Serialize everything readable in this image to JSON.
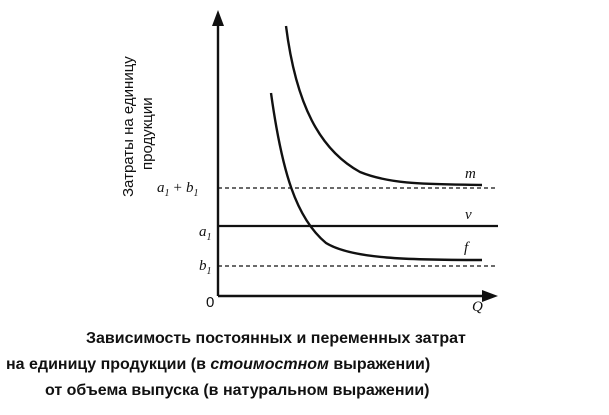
{
  "axes": {
    "y_label_line1": "Затраты на единицу",
    "y_label_line2": "продукции",
    "x_label": "Q",
    "origin_label": "0"
  },
  "levels": {
    "sum_label": "a1 + b1",
    "sum_label_a": "a",
    "sum_label_sub1": "1",
    "sum_label_plus": "+",
    "sum_label_b": "b",
    "sum_label_sub2": "1",
    "a_label": "a",
    "a_sub": "1",
    "b_label": "b",
    "b_sub": "1"
  },
  "curves": {
    "m_label": "m",
    "v_label": "v",
    "f_label": "f"
  },
  "caption": {
    "line1": "Зависимость постоянных и переменных затрат",
    "line2_a": "на единицу продукции (в ",
    "line2_b": "стоимостном",
    "line2_c": " выражении)",
    "line3": "от объема выпуска (в натуральном выражении)"
  },
  "colors": {
    "ink": "#111111"
  }
}
